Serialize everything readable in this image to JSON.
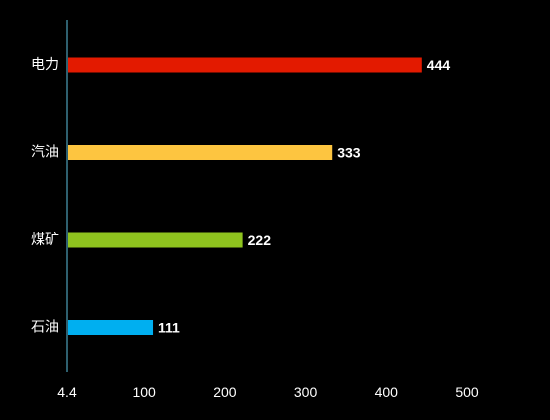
{
  "chart_data": {
    "type": "bar",
    "orientation": "horizontal",
    "categories": [
      "电力",
      "汽油",
      "煤矿",
      "石油"
    ],
    "values": [
      444,
      333,
      222,
      111
    ],
    "colors": [
      "#e31a00",
      "#fdc540",
      "#8ec31e",
      "#00aff0"
    ],
    "xlim": [
      4.4,
      500
    ],
    "x_ticks": [
      4.4,
      100,
      200,
      300,
      400,
      500
    ],
    "x_tick_labels": [
      "4.4",
      "100",
      "200",
      "300",
      "400",
      "500"
    ],
    "axis_color": "#5bc0de",
    "background": "#000000",
    "grid": false,
    "legend": "none",
    "title": "",
    "xlabel": "",
    "ylabel": ""
  }
}
